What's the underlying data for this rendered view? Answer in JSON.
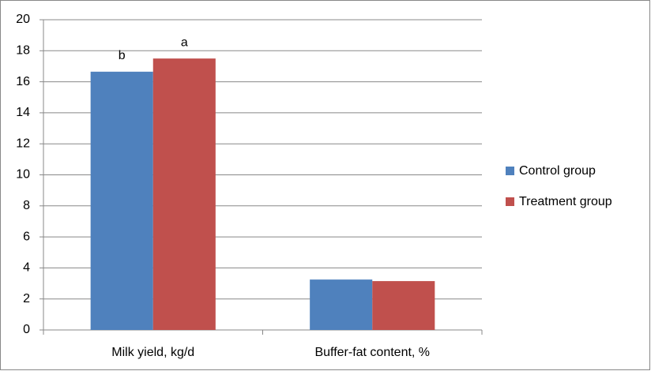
{
  "chart_data": {
    "type": "bar",
    "categories": [
      "Milk yield, kg/d",
      "Buffer-fat content, %"
    ],
    "series": [
      {
        "name": "Control group",
        "color": "#4f81bd",
        "values": [
          16.65,
          3.25
        ]
      },
      {
        "name": "Treatment group",
        "color": "#c0504d",
        "values": [
          17.5,
          3.15
        ]
      }
    ],
    "annotations": [
      "b",
      "a"
    ],
    "ylim": [
      0,
      20
    ],
    "yticks": [
      0,
      2,
      4,
      6,
      8,
      10,
      12,
      14,
      16,
      18,
      20
    ],
    "grid": true,
    "legend": "right"
  }
}
